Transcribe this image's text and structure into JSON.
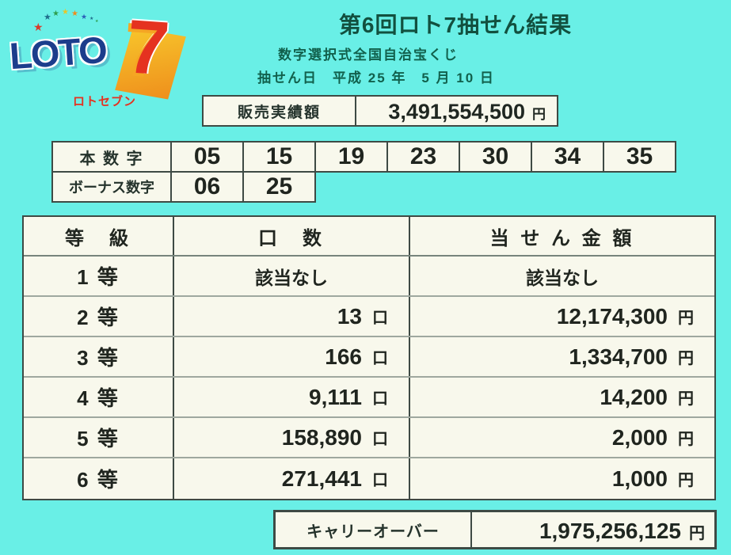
{
  "logo": {
    "loto_text": "LOTO",
    "seven": "7",
    "subtext": "ロトセブン",
    "star_colors": [
      "#D93A2B",
      "#1F6E8C",
      "#2E9E4F",
      "#E8C62A",
      "#EE8C1E",
      "#2B5FB8",
      "#1F6E8C",
      "#2E9E4F"
    ]
  },
  "header": {
    "title": "第6回ロト7抽せん結果",
    "subtitle": "数字選択式全国自治宝くじ",
    "draw_date": "抽せん日　平成 25 年　5 月 10 日"
  },
  "sales": {
    "label": "販売実績額",
    "amount": "3,491,554,500",
    "unit": "円"
  },
  "numbers": {
    "main_label": "本 数 字",
    "main": [
      "05",
      "15",
      "19",
      "23",
      "30",
      "34",
      "35"
    ],
    "bonus_label": "ボーナス数字",
    "bonus": [
      "06",
      "25"
    ]
  },
  "prize_table": {
    "header": {
      "tier": "等　級",
      "units": "口　数",
      "amount": "当 せ ん 金 額"
    },
    "no_winner_text": "該当なし",
    "units_suffix": "口",
    "amount_suffix": "円",
    "rows": [
      {
        "tier": "1 等",
        "units": null,
        "amount": null
      },
      {
        "tier": "2 等",
        "units": "13",
        "amount": "12,174,300"
      },
      {
        "tier": "3 等",
        "units": "166",
        "amount": "1,334,700"
      },
      {
        "tier": "4 等",
        "units": "9,111",
        "amount": "14,200"
      },
      {
        "tier": "5 等",
        "units": "158,890",
        "amount": "2,000"
      },
      {
        "tier": "6 等",
        "units": "271,441",
        "amount": "1,000"
      }
    ]
  },
  "carryover": {
    "label": "キャリーオーバー",
    "amount": "1,975,256,125",
    "unit": "円"
  }
}
